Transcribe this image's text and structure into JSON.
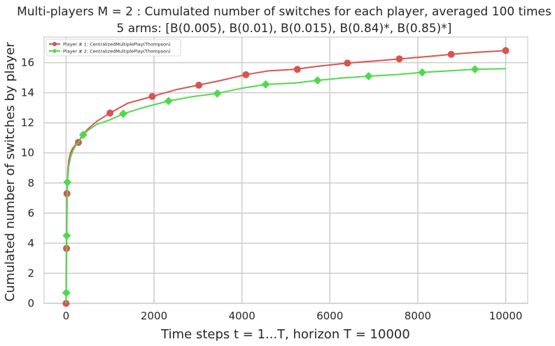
{
  "chart_data": {
    "type": "line",
    "title": "Multi-players M = 2 : Cumulated number of switches for each player, averaged 100 times",
    "subtitle": "5 arms: [B(0.005), B(0.01), B(0.015), B(0.84)*, B(0.85)*]",
    "xlabel": "Time steps t = 1...T, horizon T = 10000",
    "ylabel": "Cumulated number of switches by player",
    "xlim": [
      -500,
      10500
    ],
    "ylim": [
      0,
      17.7
    ],
    "xticks": [
      0,
      2000,
      4000,
      6000,
      8000,
      10000
    ],
    "xtick_labels": [
      "0",
      "2000",
      "4000",
      "6000",
      "8000",
      "10000"
    ],
    "yticks": [
      0,
      2,
      4,
      6,
      8,
      10,
      12,
      14,
      16
    ],
    "ytick_labels": [
      "0",
      "2",
      "4",
      "6",
      "8",
      "10",
      "12",
      "14",
      "16"
    ],
    "grid": true,
    "legend_position": "top-left",
    "series": [
      {
        "name": "Player # 1: CentralizedMultiplePlay(Thompson)",
        "color": "#d9534f",
        "marker": "circle",
        "x": [
          0,
          10,
          20,
          40,
          60,
          100,
          150,
          200,
          280,
          350,
          500,
          700,
          1000,
          1400,
          1960,
          2500,
          3000,
          3500,
          4090,
          4600,
          5200,
          5700,
          6400,
          7000,
          7600,
          8200,
          8760,
          9300,
          10000
        ],
        "y": [
          0,
          3.65,
          7.3,
          8.8,
          9.5,
          10.0,
          10.3,
          10.5,
          10.7,
          11.1,
          11.6,
          12.1,
          12.65,
          13.3,
          13.75,
          14.2,
          14.5,
          14.8,
          15.2,
          15.45,
          15.55,
          15.75,
          15.97,
          16.1,
          16.25,
          16.4,
          16.55,
          16.68,
          16.8
        ],
        "marker_x": [
          0,
          10,
          20,
          280,
          1000,
          1960,
          3020,
          4090,
          5260,
          6400,
          7580,
          8760,
          10000
        ],
        "marker_y": [
          0,
          3.65,
          7.3,
          10.7,
          12.65,
          13.75,
          14.5,
          15.2,
          15.55,
          15.97,
          16.25,
          16.55,
          16.8
        ]
      },
      {
        "name": "Player # 2: CentralizedMultiplePlay(Thompson)",
        "color": "#4fd950",
        "marker": "diamond",
        "x": [
          0,
          5,
          15,
          30,
          60,
          100,
          150,
          200,
          280,
          390,
          500,
          700,
          1000,
          1300,
          1800,
          2330,
          2900,
          3440,
          4000,
          4540,
          5200,
          5720,
          6300,
          6880,
          7500,
          8100,
          8700,
          9300,
          10000
        ],
        "y": [
          0,
          0.7,
          4.5,
          8.05,
          9.1,
          9.7,
          10.1,
          10.4,
          10.7,
          11.2,
          11.5,
          11.9,
          12.2,
          12.6,
          13.05,
          13.45,
          13.75,
          13.95,
          14.3,
          14.55,
          14.65,
          14.82,
          14.98,
          15.1,
          15.2,
          15.35,
          15.45,
          15.56,
          15.6
        ],
        "marker_x": [
          5,
          15,
          30,
          390,
          1300,
          2330,
          3440,
          4540,
          5720,
          6880,
          8100,
          9300
        ],
        "marker_y": [
          0.7,
          4.5,
          8.05,
          11.2,
          12.6,
          13.45,
          13.95,
          14.55,
          14.82,
          15.1,
          15.35,
          15.56
        ]
      }
    ]
  }
}
